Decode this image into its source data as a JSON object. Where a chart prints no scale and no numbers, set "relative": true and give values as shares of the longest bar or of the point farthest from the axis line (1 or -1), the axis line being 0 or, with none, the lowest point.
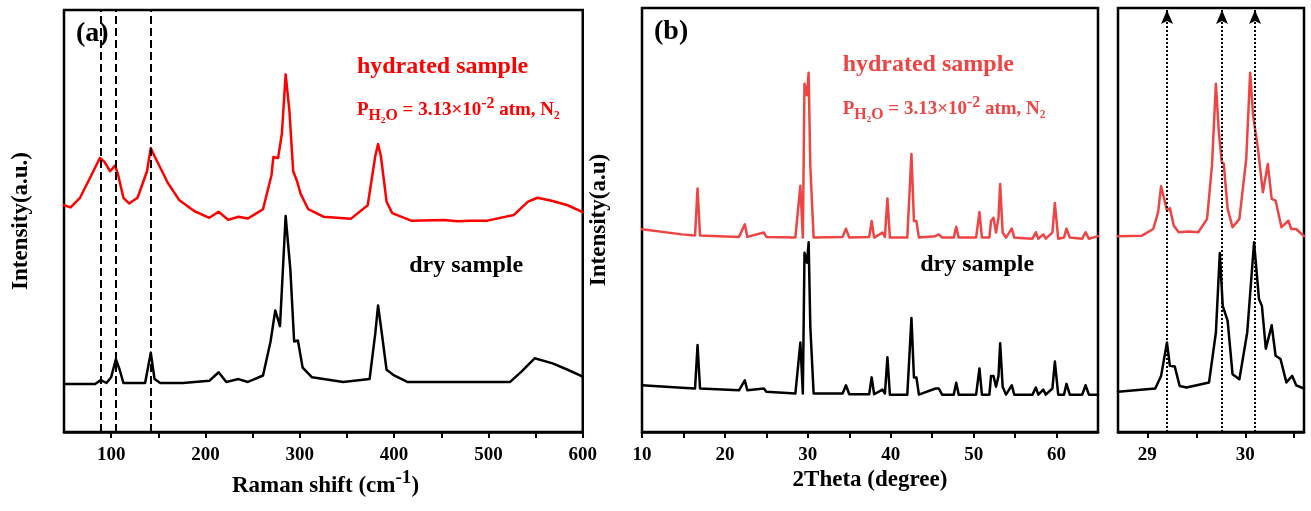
{
  "chart_data": [
    {
      "type": "line",
      "title": "(a)",
      "xlabel": "Raman shift (cm$^{-1}$)",
      "ylabel": "Intensity(a.u.)",
      "relative": true,
      "xlim": [
        50,
        600
      ],
      "xticks": [
        100,
        200,
        300,
        400,
        500,
        600,
        {
          "value": 150,
          "label": null
        },
        {
          "value": 250,
          "label": null
        },
        {
          "value": 350,
          "label": null
        },
        {
          "value": 450,
          "label": null
        },
        {
          "value": 550,
          "label": null
        }
      ],
      "tick_labels": "x",
      "grid": false,
      "legend": false,
      "marker": "none",
      "line_style": "solid",
      "annotations": [
        "P$_{H₂O}$ = 3.13×10$^{-2}$ atm, N₂"
      ],
      "ref_lines": [
        {
          "axis": "x",
          "value": 89,
          "line_style": "dashed",
          "color": "#000000"
        },
        {
          "axis": "x",
          "value": 105,
          "line_style": "dashed",
          "color": "#000000"
        },
        {
          "axis": "x",
          "value": 142,
          "line_style": "dashed",
          "color": "#000000"
        }
      ],
      "series": [
        {
          "name": "hydrated sample",
          "color": "#ff0000",
          "x": [
            50,
            57,
            67,
            79,
            88,
            93,
            99,
            104,
            107,
            113,
            119,
            128,
            138,
            142,
            146,
            150,
            160,
            172,
            188,
            204,
            214,
            224,
            235,
            245,
            261,
            270,
            272,
            277,
            281,
            285,
            289,
            293,
            297,
            301,
            309,
            325,
            354,
            372,
            380,
            383,
            386,
            392,
            398,
            418,
            453,
            467,
            481,
            499,
            527,
            542,
            552,
            568,
            584,
            600
          ],
          "values": [
            0.634,
            0.628,
            0.655,
            0.718,
            0.766,
            0.755,
            0.729,
            0.745,
            0.723,
            0.655,
            0.639,
            0.655,
            0.729,
            0.794,
            0.771,
            0.75,
            0.697,
            0.649,
            0.618,
            0.599,
            0.616,
            0.593,
            0.602,
            0.597,
            0.623,
            0.718,
            0.769,
            0.766,
            0.834,
            1.0,
            0.898,
            0.729,
            0.702,
            0.665,
            0.623,
            0.602,
            0.596,
            0.634,
            0.771,
            0.805,
            0.771,
            0.644,
            0.612,
            0.591,
            0.593,
            0.589,
            0.591,
            0.591,
            0.607,
            0.644,
            0.655,
            0.646,
            0.634,
            0.615
          ]
        },
        {
          "name": "dry sample",
          "color": "#000000",
          "x": [
            50,
            83,
            89,
            95,
            100,
            105,
            109,
            113,
            136,
            142,
            146,
            152,
            176,
            204,
            214,
            222,
            235,
            245,
            261,
            269,
            274,
            279,
            285,
            290,
            294,
            298,
            303,
            313,
            346,
            374,
            380,
            383,
            387,
            392,
            400,
            414,
            523,
            535,
            549,
            568,
            584,
            600
          ],
          "values": [
            0.134,
            0.134,
            0.145,
            0.137,
            0.153,
            0.204,
            0.174,
            0.137,
            0.137,
            0.222,
            0.148,
            0.137,
            0.137,
            0.143,
            0.167,
            0.14,
            0.148,
            0.14,
            0.158,
            0.253,
            0.34,
            0.296,
            0.604,
            0.454,
            0.253,
            0.256,
            0.18,
            0.153,
            0.14,
            0.148,
            0.275,
            0.354,
            0.275,
            0.174,
            0.158,
            0.14,
            0.14,
            0.169,
            0.206,
            0.192,
            0.174,
            0.155
          ]
        }
      ]
    },
    {
      "type": "line",
      "title": "(b)",
      "xlabel": "2Theta (degree)",
      "ylabel": "Intensity(a.u)",
      "relative": true,
      "xlim": [
        10,
        65
      ],
      "xticks": [
        10,
        20,
        30,
        40,
        50,
        60,
        {
          "value": 15,
          "label": null
        },
        {
          "value": 25,
          "label": null
        },
        {
          "value": 35,
          "label": null
        },
        {
          "value": 45,
          "label": null
        },
        {
          "value": 55,
          "label": null
        }
      ],
      "tick_labels": "x",
      "grid": false,
      "legend": false,
      "marker": "none",
      "line_style": "solid",
      "annotations": [
        "P$_{H₂O}$ = 3.13×10$^{-2}$ atm, N₂"
      ],
      "series": [
        {
          "name": "hydrated sample",
          "color": "#ef4444",
          "x": [
            10,
            14.8,
            16.4,
            16.7,
            17.0,
            21.7,
            22.4,
            22.7,
            24.7,
            25.0,
            28.5,
            29.1,
            29.4,
            29.6,
            29.9,
            30.1,
            30.3,
            30.7,
            34.2,
            34.6,
            35.0,
            37.4,
            37.7,
            38.0,
            39.0,
            39.3,
            39.6,
            39.9,
            42.0,
            42.5,
            42.8,
            43.1,
            43.4,
            45.4,
            45.8,
            46.2,
            47.6,
            47.9,
            48.2,
            50.3,
            50.7,
            51.0,
            51.9,
            52.1,
            52.4,
            52.7,
            53.0,
            53.2,
            53.5,
            53.9,
            54.6,
            54.9,
            57.1,
            57.5,
            57.8,
            58.4,
            58.7,
            59.5,
            59.8,
            60.2,
            60.9,
            61.2,
            61.6,
            63.1,
            63.5,
            63.9,
            65
          ],
          "values": [
            0.564,
            0.55,
            0.547,
            0.678,
            0.547,
            0.543,
            0.578,
            0.543,
            0.555,
            0.543,
            0.541,
            0.685,
            0.541,
            0.969,
            0.937,
            1.0,
            0.741,
            0.541,
            0.543,
            0.566,
            0.541,
            0.543,
            0.587,
            0.541,
            0.555,
            0.543,
            0.65,
            0.541,
            0.541,
            0.774,
            0.587,
            0.587,
            0.541,
            0.545,
            0.55,
            0.541,
            0.541,
            0.571,
            0.541,
            0.541,
            0.612,
            0.541,
            0.541,
            0.587,
            0.596,
            0.555,
            0.596,
            0.69,
            0.555,
            0.541,
            0.566,
            0.541,
            0.538,
            0.556,
            0.538,
            0.55,
            0.538,
            0.555,
            0.637,
            0.538,
            0.541,
            0.566,
            0.541,
            0.538,
            0.556,
            0.538,
            0.545
          ]
        },
        {
          "name": "dry sample",
          "color": "#000000",
          "x": [
            10,
            14.8,
            16.4,
            16.7,
            17.0,
            21.7,
            22.4,
            22.7,
            24.7,
            25.0,
            28.5,
            29.1,
            29.4,
            29.6,
            29.9,
            30.1,
            30.3,
            30.7,
            34.2,
            34.6,
            35.0,
            37.4,
            37.7,
            38.0,
            39.0,
            39.3,
            39.6,
            39.9,
            42.0,
            42.5,
            42.8,
            43.1,
            43.4,
            45.4,
            45.8,
            46.2,
            47.6,
            47.9,
            48.2,
            50.3,
            50.7,
            51.0,
            51.9,
            52.1,
            52.4,
            52.7,
            53.0,
            53.2,
            53.5,
            53.9,
            54.6,
            54.9,
            57.1,
            57.5,
            57.8,
            58.4,
            58.7,
            59.5,
            59.8,
            60.2,
            60.9,
            61.2,
            61.6,
            63.1,
            63.5,
            63.9,
            65
          ],
          "values": [
            0.13,
            0.123,
            0.121,
            0.242,
            0.121,
            0.116,
            0.144,
            0.116,
            0.121,
            0.112,
            0.107,
            0.249,
            0.107,
            0.499,
            0.471,
            0.528,
            0.294,
            0.107,
            0.107,
            0.13,
            0.105,
            0.105,
            0.152,
            0.105,
            0.118,
            0.107,
            0.208,
            0.104,
            0.104,
            0.317,
            0.152,
            0.152,
            0.104,
            0.121,
            0.121,
            0.104,
            0.104,
            0.137,
            0.104,
            0.104,
            0.177,
            0.104,
            0.104,
            0.156,
            0.156,
            0.126,
            0.156,
            0.247,
            0.126,
            0.104,
            0.13,
            0.104,
            0.104,
            0.124,
            0.104,
            0.118,
            0.104,
            0.121,
            0.196,
            0.104,
            0.104,
            0.134,
            0.104,
            0.104,
            0.13,
            0.104,
            0.104
          ]
        }
      ]
    },
    {
      "type": "line",
      "relative": true,
      "xlim": [
        28.7,
        30.6
      ],
      "xticks": [
        29,
        30,
        {
          "value": 29.5,
          "label": null
        },
        {
          "value": 30.5,
          "label": null
        }
      ],
      "tick_labels": "x",
      "grid": false,
      "legend": false,
      "marker": "none",
      "line_style": "solid",
      "ref_lines": [
        {
          "axis": "x",
          "value": 29.2,
          "line_style": "dotted",
          "color": "#000000"
        },
        {
          "axis": "x",
          "value": 29.76,
          "line_style": "dotted",
          "color": "#000000"
        },
        {
          "axis": "x",
          "value": 30.1,
          "line_style": "dotted",
          "color": "#000000"
        }
      ],
      "series": [
        {
          "color": "#ef4444",
          "x": [
            28.7,
            28.94,
            29.06,
            29.11,
            29.14,
            29.18,
            29.2,
            29.23,
            29.27,
            29.32,
            29.42,
            29.52,
            29.61,
            29.66,
            29.7,
            29.73,
            29.76,
            29.78,
            29.82,
            29.87,
            29.94,
            30.01,
            30.05,
            30.08,
            30.13,
            30.18,
            30.23,
            30.27,
            30.31,
            30.37,
            30.44,
            30.47,
            30.52,
            30.6
          ],
          "values": [
            0.545,
            0.546,
            0.565,
            0.612,
            0.684,
            0.639,
            0.616,
            0.623,
            0.574,
            0.556,
            0.558,
            0.556,
            0.593,
            0.742,
            0.969,
            0.835,
            0.751,
            0.747,
            0.621,
            0.57,
            0.593,
            0.76,
            1.0,
            0.881,
            0.788,
            0.667,
            0.746,
            0.649,
            0.644,
            0.57,
            0.588,
            0.565,
            0.565,
            0.545
          ]
        },
        {
          "color": "#000000",
          "x": [
            28.7,
            29.08,
            29.14,
            29.2,
            29.23,
            29.28,
            29.33,
            29.4,
            29.63,
            29.7,
            29.74,
            29.77,
            29.82,
            29.87,
            29.94,
            30.02,
            30.09,
            30.14,
            30.17,
            30.21,
            30.27,
            30.31,
            30.36,
            30.42,
            30.48,
            30.52,
            30.6
          ],
          "values": [
            0.112,
            0.121,
            0.156,
            0.249,
            0.184,
            0.182,
            0.128,
            0.124,
            0.138,
            0.277,
            0.498,
            0.351,
            0.309,
            0.161,
            0.147,
            0.277,
            0.528,
            0.37,
            0.351,
            0.232,
            0.297,
            0.212,
            0.203,
            0.138,
            0.156,
            0.13,
            0.121
          ]
        }
      ]
    }
  ]
}
